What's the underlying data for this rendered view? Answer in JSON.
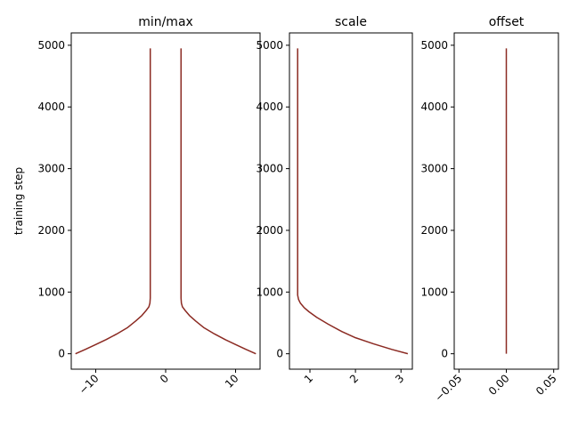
{
  "chart_data": [
    {
      "type": "line",
      "title": "min/max",
      "xlabel": "",
      "ylabel": "training step",
      "xlim": [
        -13.5,
        13.5
      ],
      "ylim": [
        -250,
        5200
      ],
      "xticks": [
        -10,
        0,
        10
      ],
      "xtick_labels": [
        "−10",
        "0",
        "10"
      ],
      "yticks": [
        0,
        1000,
        2000,
        3000,
        4000,
        5000
      ],
      "ytick_labels": [
        "0",
        "1000",
        "2000",
        "3000",
        "4000",
        "5000"
      ],
      "color": "#8b2a22",
      "series": [
        {
          "x": [
            -12.9,
            -11.5,
            -10.0,
            -8.5,
            -7.0,
            -5.5,
            -4.3,
            -3.4,
            -2.8,
            -2.4,
            -2.25,
            -2.2,
            -2.2
          ],
          "y": [
            0,
            70,
            150,
            230,
            320,
            420,
            530,
            620,
            700,
            760,
            820,
            900,
            4950
          ]
        },
        {
          "x": [
            12.9,
            11.5,
            10.0,
            8.5,
            7.0,
            5.5,
            4.3,
            3.4,
            2.8,
            2.4,
            2.25,
            2.2,
            2.2
          ],
          "y": [
            0,
            70,
            150,
            230,
            320,
            420,
            530,
            620,
            700,
            760,
            820,
            900,
            4950
          ]
        }
      ]
    },
    {
      "type": "line",
      "title": "scale",
      "xlabel": "",
      "ylabel": "",
      "xlim": [
        0.55,
        3.25
      ],
      "ylim": [
        -250,
        5200
      ],
      "xticks": [
        1,
        2,
        3
      ],
      "xtick_labels": [
        "1",
        "2",
        "3"
      ],
      "yticks": [
        0,
        1000,
        2000,
        3000,
        4000,
        5000
      ],
      "ytick_labels": [
        "0",
        "1000",
        "2000",
        "3000",
        "4000",
        "5000"
      ],
      "color": "#8b2a22",
      "series": [
        {
          "x": [
            3.15,
            2.8,
            2.4,
            2.0,
            1.7,
            1.4,
            1.15,
            0.98,
            0.87,
            0.79,
            0.75,
            0.73,
            0.73
          ],
          "y": [
            0,
            70,
            160,
            260,
            360,
            480,
            590,
            680,
            750,
            820,
            880,
            950,
            4950
          ]
        }
      ]
    },
    {
      "type": "line",
      "title": "offset",
      "xlabel": "",
      "ylabel": "",
      "xlim": [
        -0.055,
        0.055
      ],
      "ylim": [
        -250,
        5200
      ],
      "xticks": [
        -0.05,
        0.0,
        0.05
      ],
      "xtick_labels": [
        "−0.05",
        "0.00",
        "0.05"
      ],
      "yticks": [
        0,
        1000,
        2000,
        3000,
        4000,
        5000
      ],
      "ytick_labels": [
        "0",
        "1000",
        "2000",
        "3000",
        "4000",
        "5000"
      ],
      "color": "#8b2a22",
      "series": [
        {
          "x": [
            0.0,
            0.0
          ],
          "y": [
            0,
            4950
          ]
        }
      ]
    }
  ]
}
